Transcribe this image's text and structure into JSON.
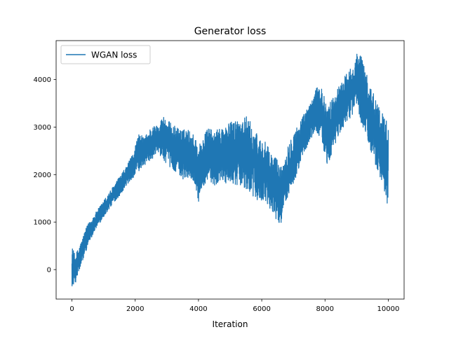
{
  "chart_data": {
    "type": "line",
    "title": "Generator loss",
    "xlabel": "Iteration",
    "ylabel": "",
    "xlim": [
      -500,
      10500
    ],
    "ylim": [
      -620,
      4820
    ],
    "x_ticks": [
      0,
      2000,
      4000,
      6000,
      8000,
      10000
    ],
    "x_tick_labels": [
      "0",
      "2000",
      "4000",
      "6000",
      "8000",
      "10000"
    ],
    "y_ticks": [
      0,
      1000,
      2000,
      3000,
      4000
    ],
    "y_tick_labels": [
      "0",
      "1000",
      "2000",
      "3000",
      "4000"
    ],
    "grid": false,
    "legend": {
      "position": "top-left",
      "entries": [
        "WGAN loss"
      ]
    },
    "series": [
      {
        "name": "WGAN loss",
        "color": "#1f77b4",
        "envelope": {
          "x": [
            0,
            100,
            200,
            300,
            400,
            500,
            700,
            900,
            1100,
            1300,
            1500,
            1700,
            1900,
            2100,
            2300,
            2500,
            2700,
            2900,
            3100,
            3300,
            3500,
            3700,
            3900,
            4000,
            4100,
            4300,
            4500,
            4700,
            4900,
            5100,
            5300,
            5500,
            5700,
            5900,
            6100,
            6300,
            6500,
            6600,
            6700,
            6900,
            7100,
            7300,
            7500,
            7700,
            7900,
            8000,
            8100,
            8300,
            8500,
            8700,
            8900,
            9000,
            9100,
            9200,
            9400,
            9600,
            9800,
            10000
          ],
          "low": [
            -350,
            -300,
            -100,
            100,
            300,
            500,
            800,
            1000,
            1200,
            1400,
            1550,
            1750,
            1900,
            2050,
            2200,
            2300,
            2450,
            2300,
            2150,
            2050,
            1900,
            1950,
            1800,
            1400,
            1700,
            1900,
            1750,
            1900,
            1800,
            1750,
            1800,
            1650,
            1550,
            1450,
            1400,
            1250,
            1000,
            900,
            1400,
            1600,
            1950,
            2300,
            2700,
            2900,
            2700,
            2300,
            2200,
            2600,
            2900,
            3100,
            3300,
            3500,
            3200,
            2800,
            2500,
            2200,
            1850,
            1300
          ],
          "high": [
            500,
            300,
            450,
            600,
            800,
            950,
            1150,
            1350,
            1550,
            1750,
            1950,
            2150,
            2400,
            2850,
            2800,
            3000,
            3050,
            3250,
            3100,
            3000,
            2950,
            2950,
            2800,
            2650,
            2700,
            3000,
            2900,
            3000,
            3050,
            3150,
            3200,
            3250,
            3050,
            2800,
            2700,
            2450,
            2350,
            2150,
            2300,
            2800,
            3000,
            3250,
            3450,
            3800,
            3900,
            3550,
            3450,
            3700,
            3950,
            4150,
            4350,
            4550,
            4600,
            4400,
            3900,
            3650,
            3300,
            3150
          ]
        }
      }
    ]
  }
}
